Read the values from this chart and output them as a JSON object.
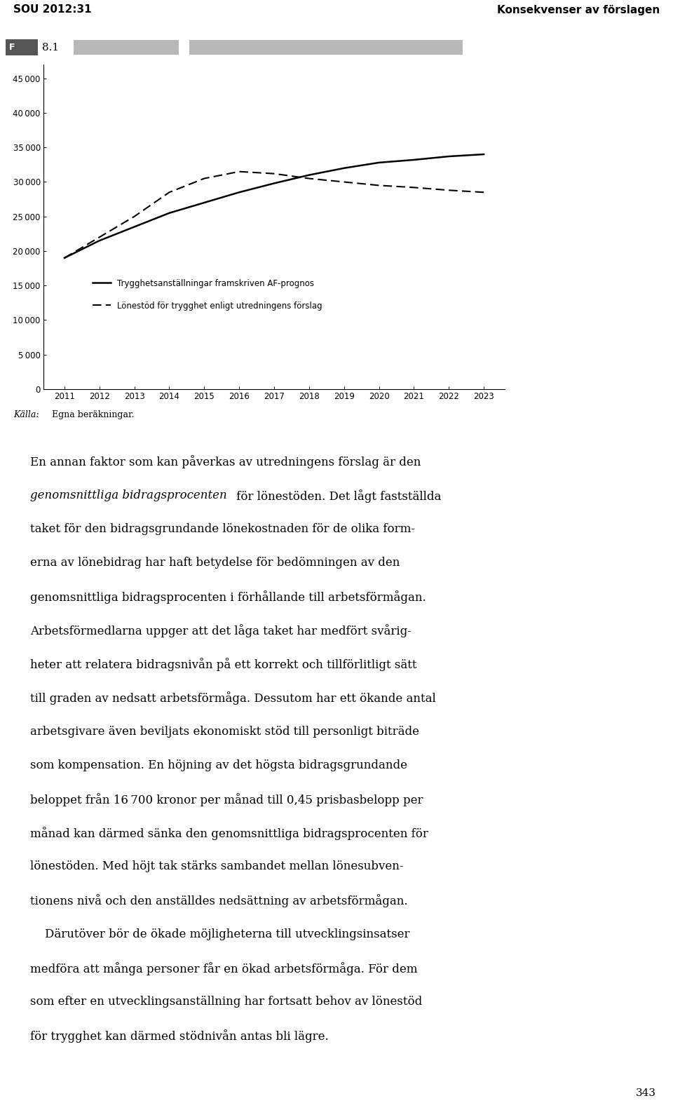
{
  "years": [
    2011,
    2012,
    2013,
    2014,
    2015,
    2016,
    2017,
    2018,
    2019,
    2020,
    2021,
    2022,
    2023
  ],
  "solid_line": [
    19000,
    21500,
    23500,
    25500,
    27000,
    28500,
    29800,
    31000,
    32000,
    32800,
    33200,
    33700,
    34000
  ],
  "dashed_line": [
    19000,
    22000,
    25000,
    28500,
    30500,
    31500,
    31200,
    30500,
    30000,
    29500,
    29200,
    28800,
    28500
  ],
  "y_ticks": [
    0,
    5000,
    10000,
    15000,
    20000,
    25000,
    30000,
    35000,
    40000,
    45000
  ],
  "x_ticks": [
    2011,
    2012,
    2013,
    2014,
    2015,
    2016,
    2017,
    2018,
    2019,
    2020,
    2021,
    2022,
    2023
  ],
  "ylim": [
    0,
    47000
  ],
  "solid_label": "Trygghetsanställningar framskriven AF-prognos",
  "dashed_label": "Lönestöd för trygghet enligt utredningens förslag",
  "source_italic": "Källa:",
  "source_normal": " Egna beräkningar.",
  "header_left": "SOU 2012:31",
  "header_right": "Konsekvenser av förslagen",
  "figure_label": "8.1",
  "page_number": "343",
  "background_color": "#ffffff",
  "fig_num_dark_color": "#555555",
  "fig_num_light_color": "#b8b8b8",
  "body_line1": "En annan faktor som kan påverkas av utredningens förslag är den",
  "body_line2_italic": "genomsnittliga bidragsprocenten",
  "body_line2_rest": " för lönestöden. Det lågt fastställda",
  "body_rest": "taket för den bidragsgrundande lönekostnaden för de olika form-\nerna av lönebidrag har haft betydelse för bedömningen av den\ngenomsnittliga bidragsprocenten i förhållande till arbetsförmågan.\nArbetsförmedlarna uppger att det låga taket har medfört svårig-\nheter att relatera bidragsnivån på ett korrekt och tillförlitligt sätt\ntill graden av nedsatt arbetsförmåga. Dessutom har ett ökande antal\narbetsgivare även beviljats ekonomiskt stöd till personligt biträde\nsom kompensation. En höjning av det högsta bidragsgrundande\nbeloppet från 16 700 kronor per månad till 0,45 prisbasbelopp per\nmånad kan därmed sänka den genomsnittliga bidragsprocenten för\nlönestöden. Med höjt tak stärks sambandet mellan lönesubven-\ntionens nivå och den anställdes nedsättning av arbetsförmågan.\n    Därutöver bör de ökade möjligheterna till utvecklingsinsatser\nmedföra att många personer får en ökad arbetsförmåga. För dem\nsom efter en utvecklingsanställning har fortsatt behov av lönestöd\nför trygghet kan därmed stödnivån antas bli lägre."
}
